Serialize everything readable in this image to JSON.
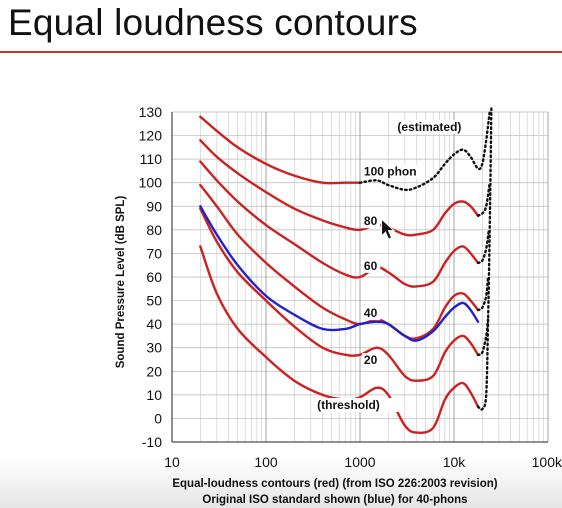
{
  "slide": {
    "title": "Equal loudness contours",
    "title_rule_color": "#c0392b"
  },
  "chart_data": {
    "type": "line",
    "title": "",
    "xlabel": "",
    "ylabel": "Sound Pressure Level (dB SPL)",
    "x_scale": "log",
    "xlim": [
      10,
      100000
    ],
    "ylim": [
      -10,
      130
    ],
    "x_ticks": [
      10,
      100,
      1000,
      10000,
      100000
    ],
    "x_tick_labels": [
      "10",
      "100",
      "1000",
      "10k",
      "100k"
    ],
    "y_ticks": [
      -10,
      0,
      10,
      20,
      30,
      40,
      50,
      60,
      70,
      80,
      90,
      100,
      110,
      120,
      130
    ],
    "grid": true,
    "series": [
      {
        "name": "",
        "color": "#cc2222",
        "style": "solid",
        "points": [
          [
            20,
            73
          ],
          [
            30,
            53
          ],
          [
            50,
            38
          ],
          [
            100,
            26
          ],
          [
            200,
            16
          ],
          [
            400,
            10
          ],
          [
            700,
            8
          ],
          [
            1000,
            9
          ],
          [
            1500,
            13
          ],
          [
            2000,
            10
          ],
          [
            3000,
            -3
          ],
          [
            4000,
            -6
          ],
          [
            6000,
            -4
          ],
          [
            8000,
            8
          ],
          [
            10000,
            13
          ],
          [
            12500,
            15
          ],
          [
            15000,
            11
          ],
          [
            18000,
            5
          ]
        ]
      },
      {
        "name": "",
        "color": "#cc2222",
        "style": "solid",
        "points": [
          [
            20,
            89
          ],
          [
            30,
            75
          ],
          [
            50,
            62
          ],
          [
            100,
            50
          ],
          [
            200,
            39
          ],
          [
            400,
            30
          ],
          [
            700,
            27
          ],
          [
            1000,
            27
          ],
          [
            1500,
            30
          ],
          [
            2000,
            27
          ],
          [
            3000,
            18
          ],
          [
            4000,
            16
          ],
          [
            6000,
            18
          ],
          [
            8000,
            28
          ],
          [
            10000,
            33
          ],
          [
            12500,
            35
          ],
          [
            15000,
            32
          ],
          [
            18000,
            27
          ]
        ]
      },
      {
        "name": "",
        "color": "#cc2222",
        "style": "solid",
        "points": [
          [
            20,
            99
          ],
          [
            30,
            90
          ],
          [
            50,
            78
          ],
          [
            100,
            66
          ],
          [
            200,
            56
          ],
          [
            400,
            47
          ],
          [
            700,
            42
          ],
          [
            1000,
            40
          ],
          [
            1500,
            42
          ],
          [
            2000,
            40
          ],
          [
            3000,
            35
          ],
          [
            4000,
            34
          ],
          [
            6000,
            38
          ],
          [
            8000,
            47
          ],
          [
            10000,
            52
          ],
          [
            12500,
            53
          ],
          [
            15000,
            50
          ],
          [
            18000,
            46
          ]
        ]
      },
      {
        "name": "",
        "color": "#cc2222",
        "style": "solid",
        "points": [
          [
            20,
            109
          ],
          [
            30,
            101
          ],
          [
            50,
            92
          ],
          [
            100,
            82
          ],
          [
            200,
            74
          ],
          [
            400,
            66
          ],
          [
            700,
            61
          ],
          [
            1000,
            60
          ],
          [
            1500,
            64
          ],
          [
            2000,
            62
          ],
          [
            3000,
            57
          ],
          [
            4000,
            56
          ],
          [
            6000,
            58
          ],
          [
            8000,
            66
          ],
          [
            10000,
            71
          ],
          [
            12500,
            73
          ],
          [
            15000,
            70
          ],
          [
            18000,
            66
          ]
        ]
      },
      {
        "name": "",
        "color": "#cc2222",
        "style": "solid",
        "points": [
          [
            20,
            118
          ],
          [
            30,
            111
          ],
          [
            50,
            104
          ],
          [
            100,
            96
          ],
          [
            200,
            89
          ],
          [
            400,
            84
          ],
          [
            700,
            81
          ],
          [
            1000,
            80
          ],
          [
            1500,
            82
          ],
          [
            2000,
            81
          ],
          [
            3000,
            78
          ],
          [
            4000,
            78
          ],
          [
            6000,
            80
          ],
          [
            8000,
            87
          ],
          [
            10000,
            91
          ],
          [
            12500,
            92
          ],
          [
            15000,
            90
          ],
          [
            18000,
            86
          ]
        ]
      },
      {
        "name": "",
        "color": "#cc2222",
        "style": "solid",
        "points": [
          [
            20,
            128
          ],
          [
            30,
            122
          ],
          [
            50,
            115
          ],
          [
            100,
            108
          ],
          [
            200,
            103
          ],
          [
            400,
            100
          ],
          [
            700,
            100
          ],
          [
            1000,
            100
          ]
        ]
      },
      {
        "name": "",
        "color": "#111111",
        "style": "dotted",
        "points": [
          [
            1000,
            100
          ],
          [
            1500,
            101
          ],
          [
            2000,
            99
          ],
          [
            3000,
            97
          ],
          [
            4000,
            98
          ],
          [
            6000,
            102
          ],
          [
            8000,
            108
          ],
          [
            10000,
            112
          ],
          [
            12500,
            114
          ],
          [
            15000,
            111
          ],
          [
            18000,
            106
          ],
          [
            20000,
            108
          ],
          [
            22000,
            118
          ],
          [
            24000,
            130
          ]
        ]
      },
      {
        "name": "",
        "color": "#111111",
        "style": "dotted",
        "points": [
          [
            18000,
            5
          ],
          [
            20000,
            4
          ],
          [
            22000,
            10
          ],
          [
            23000,
            40
          ],
          [
            24000,
            80
          ],
          [
            25000,
            132
          ]
        ]
      },
      {
        "name": "",
        "color": "#111111",
        "style": "dotted",
        "points": [
          [
            18000,
            27
          ],
          [
            20000,
            28
          ],
          [
            22000,
            35
          ],
          [
            23000,
            42
          ]
        ]
      },
      {
        "name": "",
        "color": "#111111",
        "style": "dotted",
        "points": [
          [
            18000,
            46
          ],
          [
            20000,
            47
          ],
          [
            22000,
            52
          ],
          [
            23000,
            60
          ]
        ]
      },
      {
        "name": "",
        "color": "#111111",
        "style": "dotted",
        "points": [
          [
            18000,
            66
          ],
          [
            20000,
            67
          ],
          [
            22000,
            72
          ],
          [
            23500,
            80
          ]
        ]
      },
      {
        "name": "",
        "color": "#111111",
        "style": "dotted",
        "points": [
          [
            18000,
            86
          ],
          [
            20000,
            87
          ],
          [
            22000,
            90
          ],
          [
            24000,
            100
          ]
        ]
      },
      {
        "name": "",
        "color": "#2222cc",
        "style": "solid",
        "points": [
          [
            20,
            90
          ],
          [
            30,
            78
          ],
          [
            50,
            65
          ],
          [
            100,
            52
          ],
          [
            200,
            44
          ],
          [
            400,
            38
          ],
          [
            700,
            38
          ],
          [
            1000,
            40
          ],
          [
            1500,
            41
          ],
          [
            2000,
            40
          ],
          [
            3000,
            35
          ],
          [
            4000,
            33
          ],
          [
            6000,
            37
          ],
          [
            8000,
            43
          ],
          [
            10000,
            47
          ],
          [
            12500,
            49
          ],
          [
            15000,
            46
          ],
          [
            18000,
            41
          ]
        ]
      }
    ],
    "annotations": [
      {
        "text": "(estimated)",
        "x": 2500,
        "y": 122
      },
      {
        "text": "100 phon",
        "x": 1100,
        "y": 103
      },
      {
        "text": "80",
        "x": 1100,
        "y": 82
      },
      {
        "text": "60",
        "x": 1100,
        "y": 63
      },
      {
        "text": "40",
        "x": 1100,
        "y": 43
      },
      {
        "text": "20",
        "x": 1100,
        "y": 23
      },
      {
        "text": "(threshold)",
        "x": 350,
        "y": 4
      }
    ],
    "caption_lines": [
      "Equal-loudness contours (red) (from ISO 226:2003 revision)",
      "Original ISO standard shown (blue) for 40-phons"
    ]
  }
}
